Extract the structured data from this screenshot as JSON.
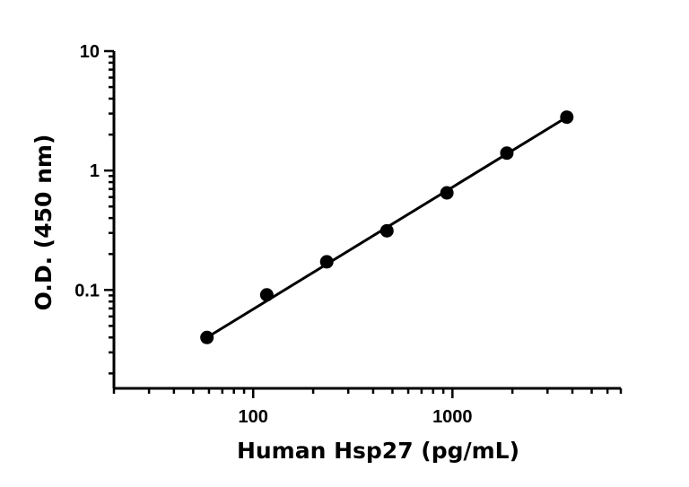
{
  "chart_data": {
    "type": "scatter",
    "xlabel": "Human Hsp27 (pg/mL)",
    "ylabel": "O.D. (450 nm)",
    "x_scale": "log",
    "y_scale": "log",
    "xlim": [
      20,
      7000
    ],
    "ylim": [
      0.015,
      10
    ],
    "x_major_ticks": [
      100,
      1000
    ],
    "x_tick_labels": [
      "100",
      "1000"
    ],
    "y_major_ticks": [
      0.1,
      1,
      10
    ],
    "y_tick_labels": [
      "0.1",
      "1",
      "10"
    ],
    "grid": false,
    "legend": "none",
    "series": [
      {
        "x": [
          58.6,
          117,
          234,
          469,
          938,
          1875,
          3750
        ],
        "y": [
          0.04,
          0.091,
          0.172,
          0.313,
          0.65,
          1.4,
          2.8
        ]
      }
    ],
    "fit_line": {
      "x": [
        58.6,
        3750
      ],
      "y": [
        0.04,
        2.8
      ]
    }
  }
}
